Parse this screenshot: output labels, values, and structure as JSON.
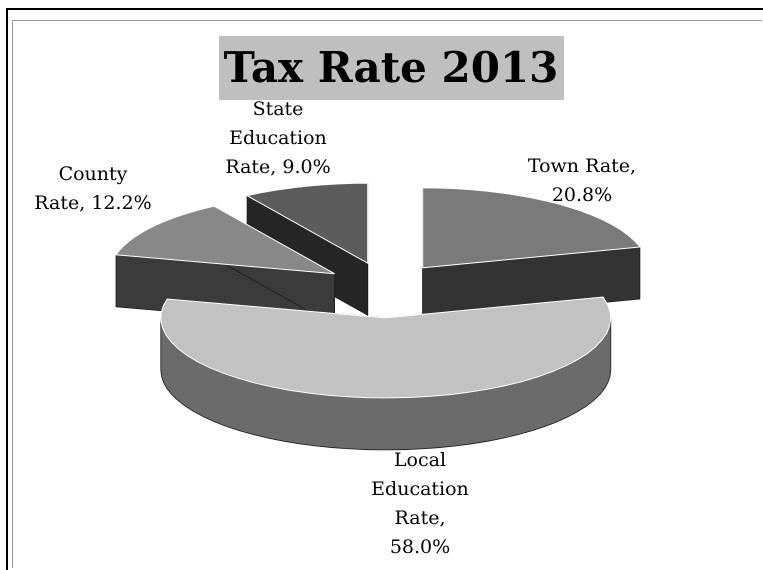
{
  "chart_data": {
    "type": "pie",
    "title": "Tax Rate 2013",
    "slices": [
      {
        "name": "Town Rate",
        "value": 20.8,
        "label_lines": [
          "Town Rate,",
          "20.8%"
        ],
        "top_color": "#7a7a7a",
        "side_color": "#333333"
      },
      {
        "name": "Local Education Rate",
        "value": 58.0,
        "label_lines": [
          "Local",
          "Education",
          "Rate,",
          "58.0%"
        ],
        "top_color": "#c2c2c2",
        "side_color": "#6b6b6b"
      },
      {
        "name": "County Rate",
        "value": 12.2,
        "label_lines": [
          "County",
          "Rate, 12.2%"
        ],
        "top_color": "#888888",
        "side_color": "#3b3b3b"
      },
      {
        "name": "State Education Rate",
        "value": 9.0,
        "label_lines": [
          "State",
          "Education",
          "Rate, 9.0%"
        ],
        "top_color": "#5c5c5c",
        "side_color": "#262626"
      }
    ],
    "legend": "none",
    "style": "3d-exploded"
  }
}
